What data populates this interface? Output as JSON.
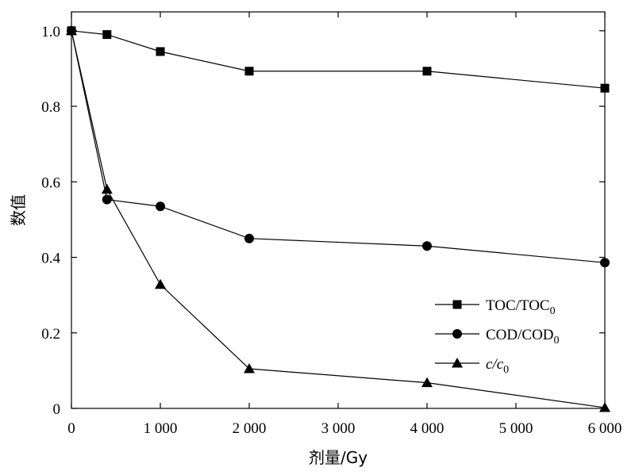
{
  "chart_data": {
    "type": "line",
    "xlabel": "剂量/Gy",
    "ylabel": "数值",
    "xlim": [
      0,
      6000
    ],
    "ylim": [
      0,
      1.05
    ],
    "x_ticks": [
      0,
      1000,
      2000,
      3000,
      4000,
      5000,
      6000
    ],
    "x_tick_labels": [
      "0",
      "1 000",
      "2 000",
      "3 000",
      "4 000",
      "5 000",
      "6 000"
    ],
    "y_ticks": [
      0,
      0.2,
      0.4,
      0.6,
      0.8,
      1.0
    ],
    "y_tick_labels": [
      "0",
      "0.2",
      "0.4",
      "0.6",
      "0.8",
      "1.0"
    ],
    "grid": false,
    "legend_position": "right",
    "series": [
      {
        "name": "TOC/TOC0",
        "legend_main": "TOC/TOC",
        "legend_sub": "0",
        "italic": false,
        "marker": "square",
        "x": [
          0,
          400,
          1000,
          2000,
          4000,
          6000
        ],
        "y": [
          1.0,
          0.99,
          0.945,
          0.893,
          0.893,
          0.848
        ]
      },
      {
        "name": "COD/COD0",
        "legend_main": "COD/COD",
        "legend_sub": "0",
        "italic": false,
        "marker": "circle",
        "x": [
          0,
          400,
          1000,
          2000,
          4000,
          6000
        ],
        "y": [
          1.0,
          0.553,
          0.535,
          0.45,
          0.43,
          0.386
        ]
      },
      {
        "name": "c/c0",
        "legend_main": "c/c",
        "legend_sub": "0",
        "italic": true,
        "marker": "triangle",
        "x": [
          0,
          400,
          1000,
          2000,
          4000,
          6000
        ],
        "y": [
          1.0,
          0.58,
          0.328,
          0.105,
          0.068,
          0.002
        ]
      }
    ]
  }
}
